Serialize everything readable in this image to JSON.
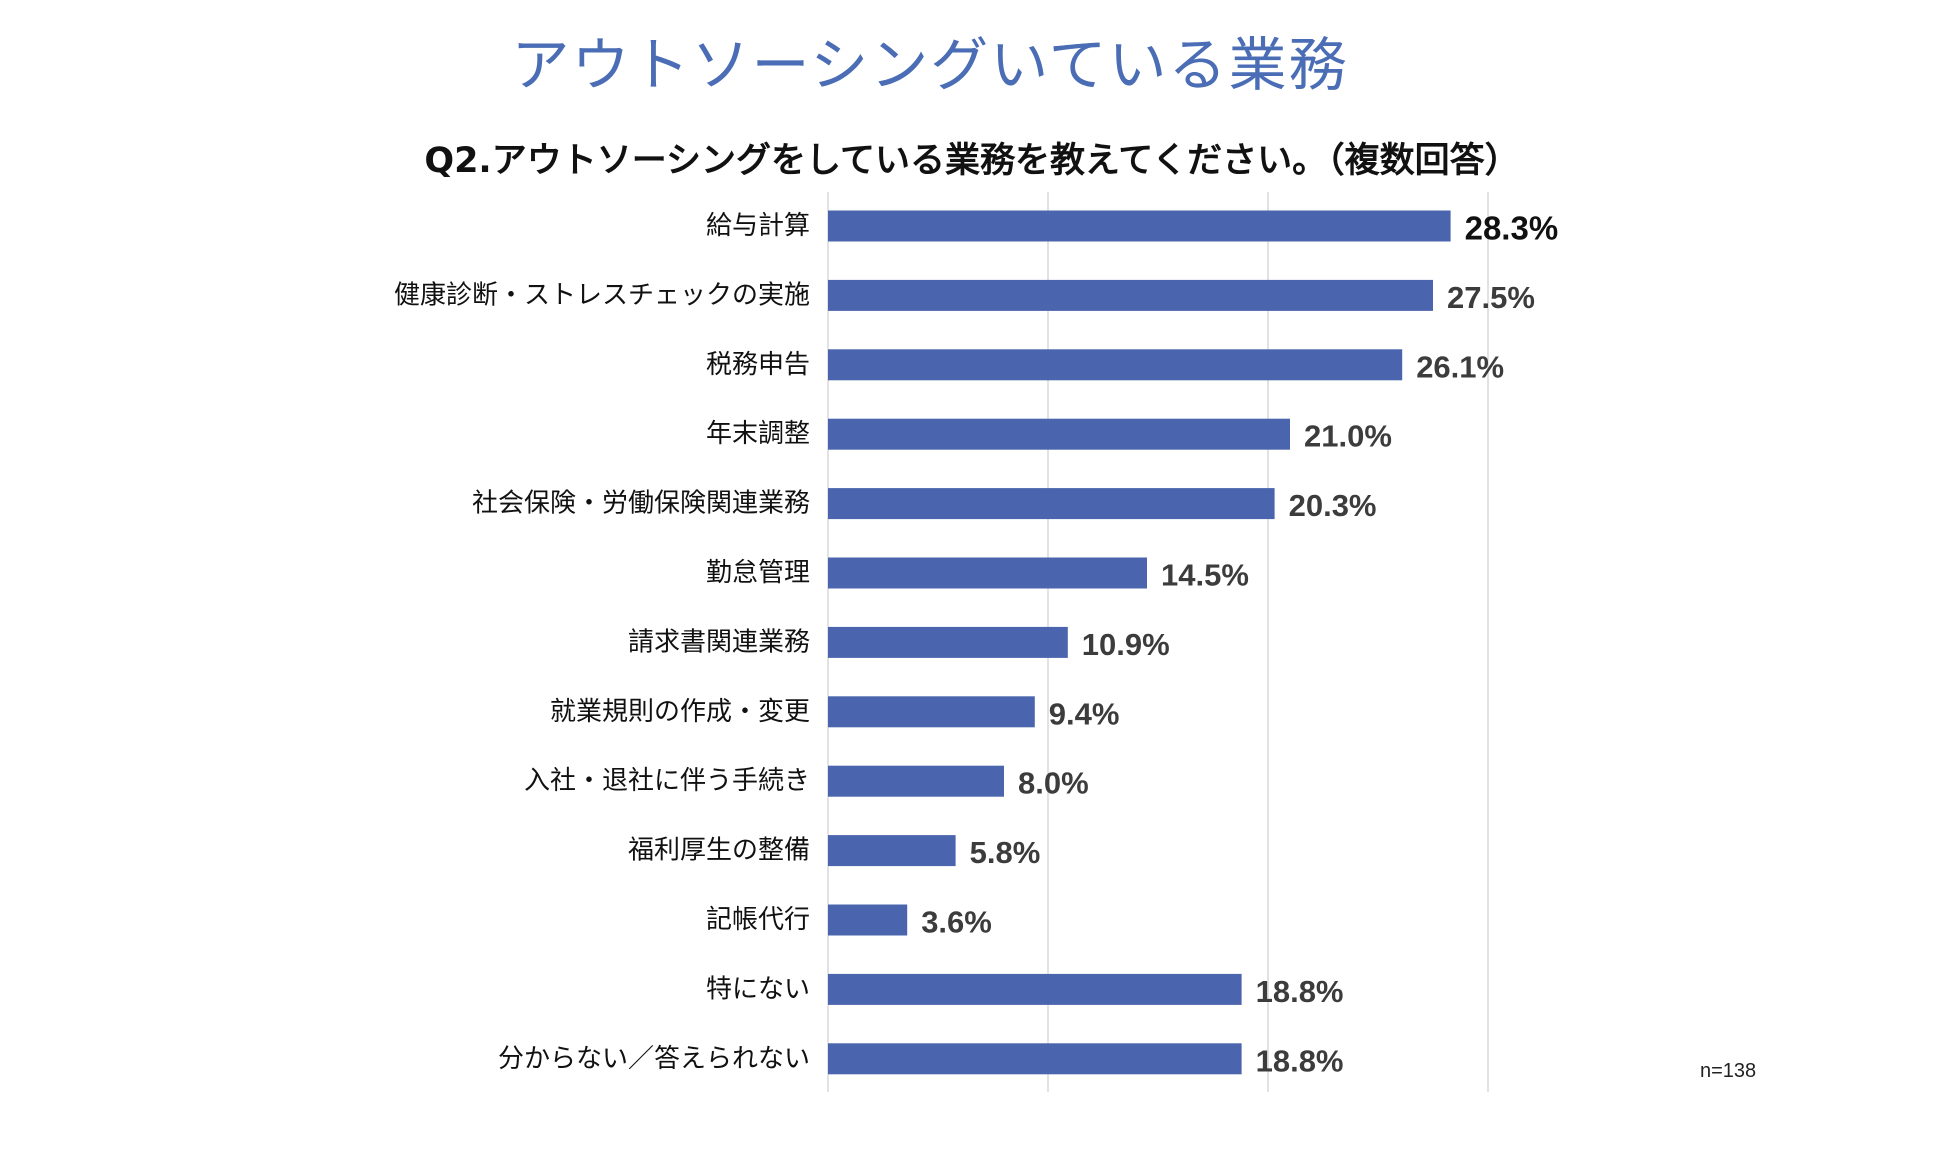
{
  "title": "アウトソーシングいている業務",
  "question": "Q2.アウトソーシングをしている業務を教えてください。（複数回答）",
  "sample_size": "n=138",
  "colors": {
    "title": "#4a6db5",
    "bar": "#4a65ae",
    "value_label": "#3c3c3c",
    "top_value_label": "#111111",
    "grid": "#d9d9d9"
  },
  "chart_data": {
    "type": "bar",
    "orientation": "horizontal",
    "title": "Q2.アウトソーシングをしている業務を教えてください。（複数回答）",
    "xlabel": "",
    "ylabel": "",
    "xlim": [
      0,
      30
    ],
    "gridlines": [
      0,
      10,
      20,
      30
    ],
    "unit": "%",
    "categories": [
      "給与計算",
      "健康診断・ストレスチェックの実施",
      "税務申告",
      "年末調整",
      "社会保険・労働保険関連業務",
      "勤怠管理",
      "請求書関連業務",
      "就業規則の作成・変更",
      "入社・退社に伴う手続き",
      "福利厚生の整備",
      "記帳代行",
      "特にない",
      "分からない／答えられない"
    ],
    "values": [
      28.3,
      27.5,
      26.1,
      21.0,
      20.3,
      14.5,
      10.9,
      9.4,
      8.0,
      5.8,
      3.6,
      18.8,
      18.8
    ],
    "value_labels": [
      "28.3%",
      "27.5%",
      "26.1%",
      "21.0%",
      "20.3%",
      "14.5%",
      "10.9%",
      "9.4%",
      "8.0%",
      "5.8%",
      "3.6%",
      "18.8%",
      "18.8%"
    ]
  }
}
